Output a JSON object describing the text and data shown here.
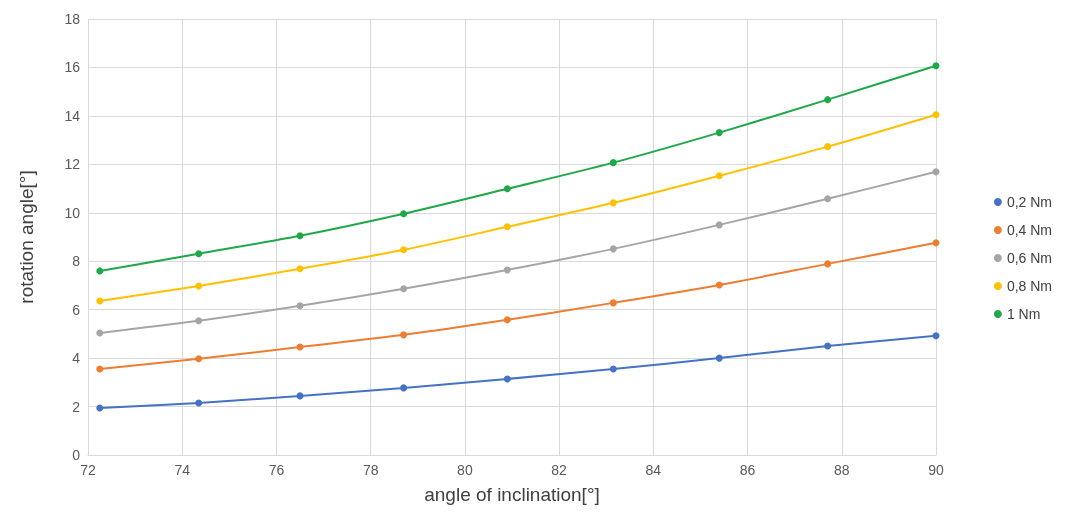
{
  "chart_data": {
    "type": "line",
    "xlabel": "angle of inclination[°]",
    "ylabel": "rotation angle[°]",
    "x": [
      72.25,
      74.35,
      76.5,
      78.7,
      80.9,
      83.15,
      85.4,
      87.7,
      90
    ],
    "series": [
      {
        "name": "0,2 Nm",
        "color": "#4472c4",
        "values": [
          1.94,
          2.15,
          2.44,
          2.77,
          3.14,
          3.55,
          4.0,
          4.5,
          4.92
        ]
      },
      {
        "name": "0,4 Nm",
        "color": "#ed7d31",
        "values": [
          3.55,
          3.97,
          4.46,
          4.96,
          5.58,
          6.28,
          7.02,
          7.89,
          8.76
        ]
      },
      {
        "name": "0,6 Nm",
        "color": "#a5a5a5",
        "values": [
          5.04,
          5.54,
          6.16,
          6.86,
          7.64,
          8.51,
          9.5,
          10.58,
          11.69
        ]
      },
      {
        "name": "0,8 Nm",
        "color": "#ffc000",
        "values": [
          6.36,
          6.98,
          7.69,
          8.47,
          9.42,
          10.41,
          11.53,
          12.73,
          14.05
        ]
      },
      {
        "name": "1 Nm",
        "color": "#1fa84a",
        "values": [
          7.6,
          8.31,
          9.05,
          9.96,
          10.99,
          12.07,
          13.31,
          14.67,
          16.07
        ]
      }
    ],
    "xlim": [
      72,
      90
    ],
    "xticks": [
      72,
      74,
      76,
      78,
      80,
      82,
      84,
      86,
      88,
      90
    ],
    "ylim": [
      0,
      18
    ],
    "yticks": [
      0,
      2,
      4,
      6,
      8,
      10,
      12,
      14,
      16,
      18
    ],
    "grid": true,
    "legend": "right",
    "marker": "circle",
    "line_style": "solid"
  }
}
